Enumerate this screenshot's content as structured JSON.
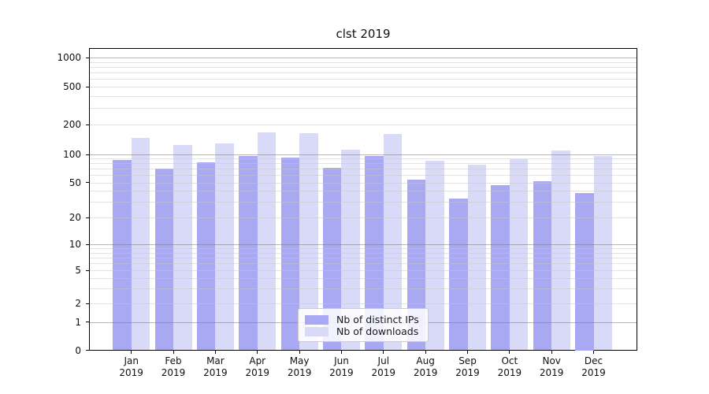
{
  "chart_data": {
    "type": "bar",
    "title": "clst 2019",
    "categories": [
      "Jan",
      "Feb",
      "Mar",
      "Apr",
      "May",
      "Jun",
      "Jul",
      "Aug",
      "Sep",
      "Oct",
      "Nov",
      "Dec"
    ],
    "category_year": "2019",
    "series": [
      {
        "name": "Nb of distinct IPs",
        "color": "#a9a9f3",
        "values": [
          88,
          71,
          82,
          97,
          92,
          72,
          96,
          54,
          33,
          47,
          51,
          38
        ]
      },
      {
        "name": "Nb of downloads",
        "color": "#d9d9f8",
        "values": [
          147,
          124,
          130,
          166,
          165,
          112,
          160,
          86,
          77,
          89,
          110,
          96
        ]
      }
    ],
    "yscale": "symlog",
    "yticks": [
      0,
      1,
      2,
      5,
      10,
      20,
      50,
      100,
      200,
      500,
      1000
    ],
    "ylim": [
      0,
      1300
    ],
    "xlabel": "",
    "ylabel": "",
    "grid": true,
    "grid_major_color": "#7a7a7a",
    "grid_minor_color": "#c8c8c8",
    "axis_color": "#000000",
    "legend_position": "lower center"
  }
}
